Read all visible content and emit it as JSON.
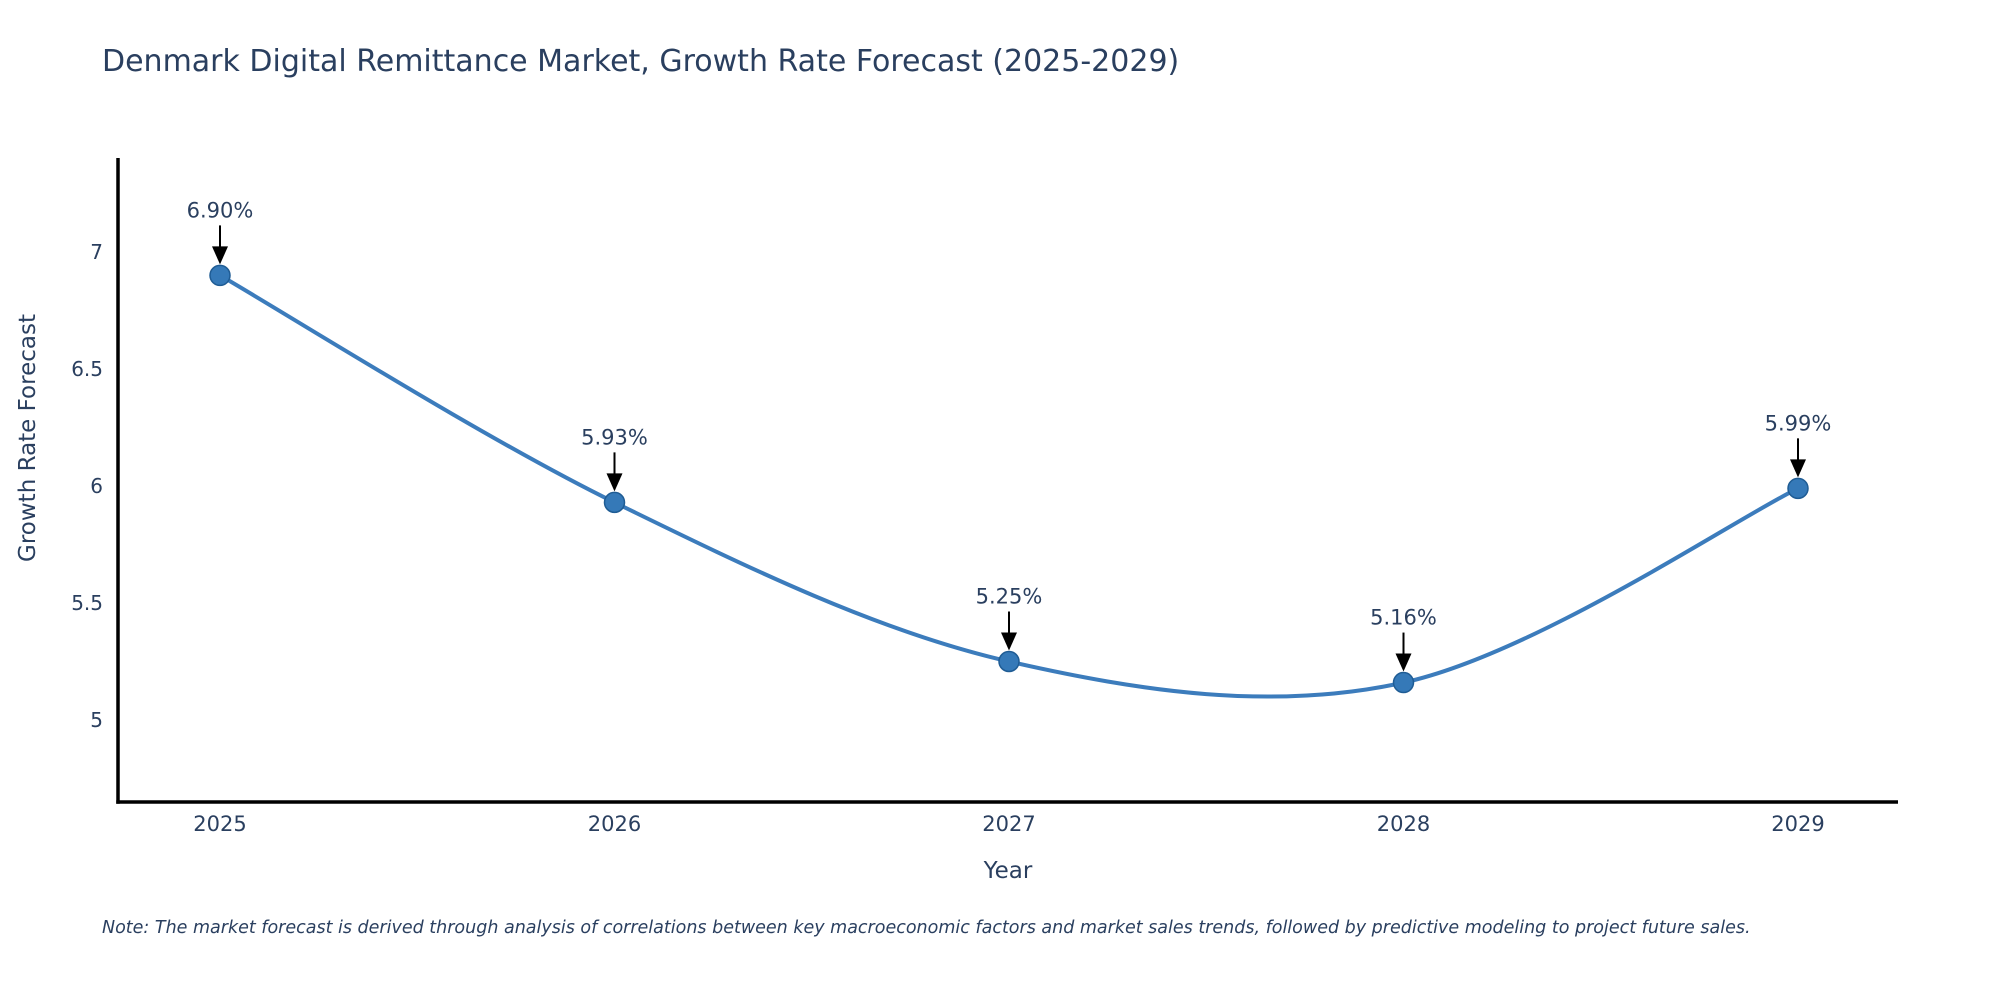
{
  "page": {
    "background": "#ffffff"
  },
  "chart_data": {
    "type": "line",
    "title": "Denmark Digital Remittance Market, Growth Rate Forecast (2025-2029)",
    "xlabel": "Year",
    "ylabel": "Growth Rate Forecast",
    "categories": [
      "2025",
      "2026",
      "2027",
      "2028",
      "2029"
    ],
    "values": [
      6.9,
      5.93,
      5.25,
      5.16,
      5.99
    ],
    "point_labels": [
      "6.90%",
      "5.93%",
      "5.25%",
      "5.16%",
      "5.99%"
    ],
    "yticks": [
      7,
      6.5,
      6,
      5.5,
      5
    ],
    "ylim": [
      4.65,
      7.4
    ],
    "line_shape": "spline",
    "grid": false,
    "legend_position": "none",
    "annotations": "arrow-from-label-to-point",
    "colors": {
      "line": "#3c7cbc",
      "marker_fill": "#3579b8",
      "marker_edge": "#1f5c94",
      "text": "#2a3f5f",
      "axis_line": "#000000",
      "annotation_arrow": "#000000"
    }
  },
  "note": {
    "text": "Note: The market forecast is derived through analysis of correlations between key macroeconomic factors and market sales trends, followed by predictive modeling to project future sales."
  }
}
